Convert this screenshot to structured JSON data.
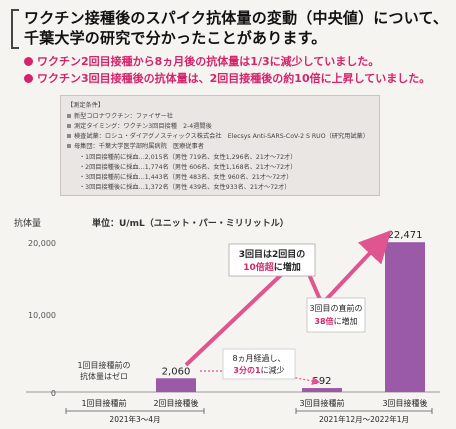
{
  "header": {
    "line1": "ワクチン接種後のスパイク抗体量の変動（中央値）について、",
    "line2": "千葉大学の研究で分かったことがあります。",
    "bullet1": "ワクチン2回目接種から8ヵ月後の抗体量は1/3に減少していました。",
    "bullet2": "ワクチン3回目接種後の抗体量は、2回目接種後の約10倍に上昇していました。"
  },
  "conditions": {
    "title": "【測定条件】",
    "items": [
      "新型コロナワクチン：ファイザー社",
      "測定タイミング：ワクチン3回目接種　2-4週間後",
      "検査試薬：ロシュ・ダイアグノスティックス株式会社　Elecsys Anti-SARS-CoV-2 S RUO（研究用試薬）",
      "母集団：千葉大学医学部附属病院　医療従事者"
    ],
    "sub": [
      "・1回目接種前に採血…2,015名（男性 719名、女性1,296名、21才～72才）",
      "・2回目接種後に採血…1,774名（男性 606名、女性1,168名、21才～72才）",
      "・3回目接種前に採血…1,443名（男性 483名、女性 960名、21才～72才）",
      "・3回目接種後に採血…1,372名（男性 439名、女性933名、21才～72才）"
    ]
  },
  "chart_data": {
    "type": "bar",
    "ylabel": "抗体量",
    "unit_note": "単位：U/mL（ユニット・パー・ミリリットル）",
    "yticks": [
      "20,000",
      "10,000",
      "0"
    ],
    "ylim": [
      0,
      24000
    ],
    "categories": [
      "1回目接種前",
      "2回目接種後",
      "3回目接種前",
      "3回目接種後"
    ],
    "values": [
      0,
      2060,
      592,
      22471
    ],
    "value_labels": [
      "",
      "2,060",
      "592",
      "22,471"
    ],
    "bar_color": "#9b5aa8",
    "line_color": "#e0558f",
    "period_labels": [
      "2021年3～4月",
      "2021年12月～2022年1月"
    ],
    "annotations": {
      "zero_note_1": "1回目接種前の",
      "zero_note_2": "抗体量はゼロ",
      "decrease_1": "8ヵ月経過し、",
      "decrease_2_pink": "3分の1",
      "decrease_2_rest": "に減少",
      "increase_1": "3回目は2回目の",
      "increase_2_pink": "10倍超",
      "increase_2_rest": "に増加",
      "prebooster_1": "3回目の直前の",
      "prebooster_2_pink": "38倍",
      "prebooster_2_rest": "に増加"
    }
  }
}
